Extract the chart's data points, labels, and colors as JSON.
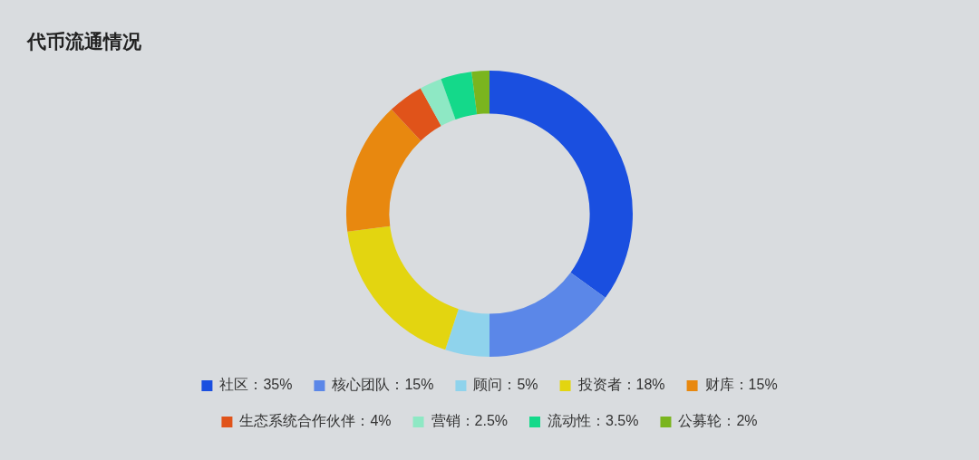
{
  "chart_data": {
    "type": "donut",
    "title": "代币流通情况",
    "categories": [
      "社区：35%",
      "核心团队：15%",
      "顾问：5%",
      "投资者：18%",
      "财库：15%",
      "生态系统合作伙伴：4%",
      "营销：2.5%",
      "流动性：3.5%",
      "公募轮：2%"
    ],
    "values": [
      35,
      15,
      5,
      18,
      15,
      4,
      2.5,
      3.5,
      2
    ],
    "colors": [
      "#1a4fe0",
      "#5b87e8",
      "#8fd3ec",
      "#e3d510",
      "#e8880f",
      "#e0531a",
      "#8ee8c4",
      "#14d98a",
      "#7ab51e"
    ],
    "legend": "bottom"
  }
}
